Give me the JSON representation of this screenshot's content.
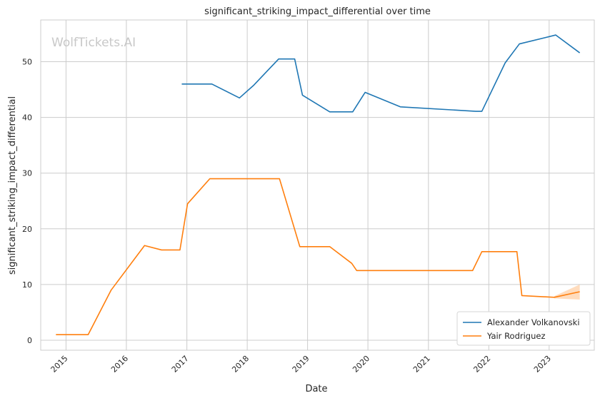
{
  "chart_data": {
    "type": "line",
    "title": "significant_striking_impact_differential over time",
    "xlabel": "Date",
    "ylabel": "significant_striking_impact_differential",
    "watermark": "WolfTickets.AI",
    "xlim": [
      "2014-08-01",
      "2023-10-01"
    ],
    "ylim": [
      -1.8,
      57.5
    ],
    "xticks": [
      "2015",
      "2016",
      "2017",
      "2018",
      "2019",
      "2020",
      "2021",
      "2022",
      "2023"
    ],
    "yticks": [
      0,
      10,
      20,
      30,
      40,
      50
    ],
    "grid": true,
    "legend_position": "lower-right",
    "series": [
      {
        "name": "Alexander Volkanovski",
        "color": "#1f77b4",
        "points": [
          [
            "2016-12-01",
            46.0
          ],
          [
            "2017-06-01",
            46.0
          ],
          [
            "2017-11-15",
            43.5
          ],
          [
            "2018-02-10",
            45.8
          ],
          [
            "2018-07-10",
            50.5
          ],
          [
            "2018-10-15",
            50.5
          ],
          [
            "2018-12-01",
            44.0
          ],
          [
            "2019-05-15",
            41.0
          ],
          [
            "2019-10-01",
            41.0
          ],
          [
            "2019-12-15",
            44.5
          ],
          [
            "2020-07-15",
            41.9
          ],
          [
            "2021-10-15",
            41.1
          ],
          [
            "2021-11-20",
            41.1
          ],
          [
            "2022-04-10",
            49.8
          ],
          [
            "2022-07-05",
            53.2
          ],
          [
            "2023-02-10",
            54.8
          ],
          [
            "2023-07-05",
            51.6
          ]
        ]
      },
      {
        "name": "Yair Rodriguez",
        "color": "#ff7f0e",
        "band_color": "#ffbf86",
        "points": [
          [
            "2014-11-01",
            1.0
          ],
          [
            "2015-05-15",
            1.0
          ],
          [
            "2015-10-01",
            9.0
          ],
          [
            "2016-04-20",
            17.0
          ],
          [
            "2016-08-01",
            16.2
          ],
          [
            "2016-11-20",
            16.2
          ],
          [
            "2017-01-05",
            24.5
          ],
          [
            "2017-05-20",
            29.0
          ],
          [
            "2018-07-15",
            29.0
          ],
          [
            "2018-11-15",
            16.8
          ],
          [
            "2019-05-15",
            16.8
          ],
          [
            "2019-09-25",
            13.8
          ],
          [
            "2019-10-25",
            12.5
          ],
          [
            "2021-09-25",
            12.5
          ],
          [
            "2021-11-20",
            15.9
          ],
          [
            "2022-06-20",
            15.9
          ],
          [
            "2022-07-20",
            8.0
          ],
          [
            "2023-02-01",
            7.7
          ],
          [
            "2023-07-05",
            8.7
          ]
        ],
        "band": [
          [
            "2023-02-01",
            7.5,
            7.9
          ],
          [
            "2023-07-05",
            7.3,
            10.0
          ]
        ]
      }
    ]
  }
}
